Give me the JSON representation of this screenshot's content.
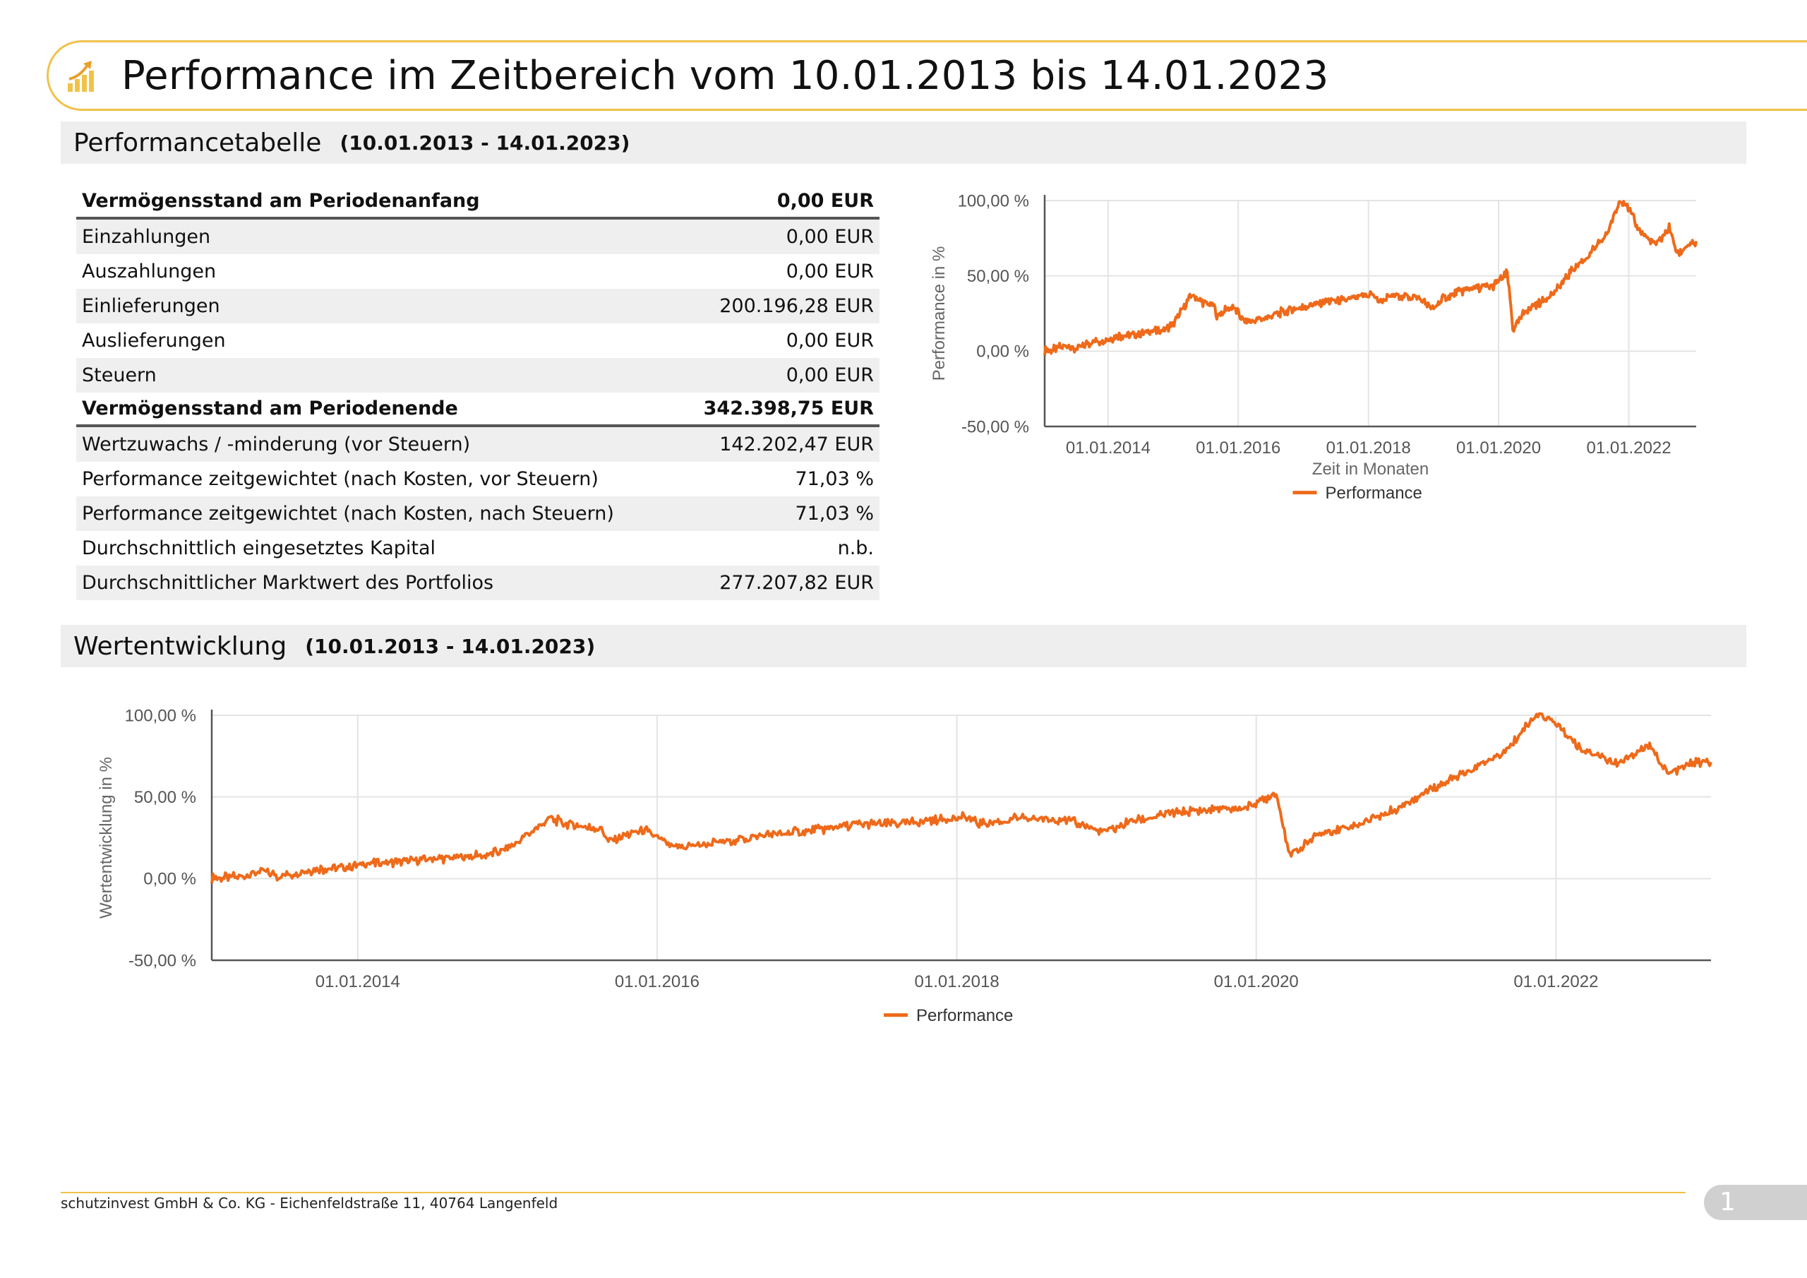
{
  "header": {
    "title": "Performance im Zeitbereich vom 10.01.2013 bis 14.01.2023",
    "icon": "chart-growth-icon",
    "accent_color": "#f1c24a"
  },
  "performance_section": {
    "title": "Performancetabelle",
    "range": "(10.01.2013 - 14.01.2023)",
    "rows": [
      {
        "label": "Vermögensstand am Periodenanfang",
        "value": "0,00 EUR",
        "bold": true
      },
      {
        "label": "Einzahlungen",
        "value": "0,00 EUR"
      },
      {
        "label": "Auszahlungen",
        "value": "0,00 EUR"
      },
      {
        "label": "Einlieferungen",
        "value": "200.196,28 EUR"
      },
      {
        "label": "Auslieferungen",
        "value": "0,00 EUR"
      },
      {
        "label": "Steuern",
        "value": "0,00 EUR"
      },
      {
        "label": "Vermögensstand am Periodenende",
        "value": "342.398,75 EUR",
        "bold": true
      },
      {
        "label": "Wertzuwachs / -minderung (vor Steuern)",
        "value": "142.202,47 EUR"
      },
      {
        "label": "Performance zeitgewichtet (nach Kosten, vor Steuern)",
        "value": "71,03 %"
      },
      {
        "label": "Performance zeitgewichtet (nach Kosten, nach Steuern)",
        "value": "71,03 %"
      },
      {
        "label": "Durchschnittlich eingesetztes Kapital",
        "value": "n.b."
      },
      {
        "label": "Durchschnittlicher Marktwert des Portfolios",
        "value": "277.207,82 EUR"
      }
    ]
  },
  "wertentwicklung_section": {
    "title": "Wertentwicklung",
    "range": "(10.01.2013 - 14.01.2023)"
  },
  "footer": {
    "text": "schutzinvest GmbH & Co. KG - Eichenfeldstraße 11, 40764 Langenfeld",
    "page": "1"
  },
  "chart_data": [
    {
      "type": "line",
      "xlabel": "Zeit in Monaten",
      "ylabel": "Performance in %",
      "legend": "bottom",
      "grid": true,
      "xlim": [
        "2013-01-10",
        "2023-01-14"
      ],
      "ylim": [
        -50,
        100
      ],
      "y_ticks": [
        "-50,00 %",
        "0,00 %",
        "50,00 %",
        "100,00 %"
      ],
      "x_ticks": [
        "01.01.2014",
        "01.01.2016",
        "01.01.2018",
        "01.01.2020",
        "01.01.2022"
      ],
      "series": [
        {
          "name": "Performance",
          "color": "#ee6a1a",
          "points": [
            [
              "2013-01-10",
              0
            ],
            [
              "2013-03-01",
              1
            ],
            [
              "2013-05-20",
              5
            ],
            [
              "2013-06-25",
              1
            ],
            [
              "2013-09-01",
              5
            ],
            [
              "2013-12-01",
              7
            ],
            [
              "2014-03-01",
              10
            ],
            [
              "2014-06-01",
              11
            ],
            [
              "2014-09-01",
              13
            ],
            [
              "2014-11-01",
              14
            ],
            [
              "2015-01-01",
              18
            ],
            [
              "2015-04-15",
              37
            ],
            [
              "2015-06-01",
              33
            ],
            [
              "2015-08-20",
              30
            ],
            [
              "2015-09-01",
              23
            ],
            [
              "2015-12-01",
              30
            ],
            [
              "2016-02-10",
              19
            ],
            [
              "2016-06-01",
              22
            ],
            [
              "2016-09-01",
              26
            ],
            [
              "2017-01-01",
              29
            ],
            [
              "2017-05-01",
              33
            ],
            [
              "2017-09-01",
              34
            ],
            [
              "2018-01-20",
              38
            ],
            [
              "2018-03-01",
              33
            ],
            [
              "2018-06-01",
              37
            ],
            [
              "2018-10-01",
              36
            ],
            [
              "2018-12-25",
              28
            ],
            [
              "2019-03-01",
              35
            ],
            [
              "2019-07-01",
              41
            ],
            [
              "2019-12-01",
              43
            ],
            [
              "2020-02-19",
              52
            ],
            [
              "2020-03-23",
              14
            ],
            [
              "2020-06-01",
              27
            ],
            [
              "2020-09-01",
              33
            ],
            [
              "2020-12-01",
              42
            ],
            [
              "2021-03-01",
              55
            ],
            [
              "2021-06-01",
              65
            ],
            [
              "2021-09-01",
              78
            ],
            [
              "2021-11-15",
              101
            ],
            [
              "2022-01-01",
              95
            ],
            [
              "2022-03-01",
              80
            ],
            [
              "2022-06-01",
              70
            ],
            [
              "2022-08-15",
              82
            ],
            [
              "2022-10-01",
              64
            ],
            [
              "2022-12-01",
              71
            ],
            [
              "2023-01-14",
              71
            ]
          ]
        }
      ]
    },
    {
      "type": "line",
      "xlabel": "",
      "ylabel": "Wertentwicklung in %",
      "legend": "bottom",
      "grid": true,
      "xlim": [
        "2013-01-10",
        "2023-01-14"
      ],
      "ylim": [
        -50,
        100
      ],
      "y_ticks": [
        "-50,00 %",
        "0,00 %",
        "50,00 %",
        "100,00 %"
      ],
      "x_ticks": [
        "01.01.2014",
        "01.01.2016",
        "01.01.2018",
        "01.01.2020",
        "01.01.2022"
      ],
      "series": [
        {
          "name": "Performance",
          "color": "#ee6a1a",
          "points": [
            [
              "2013-01-10",
              0
            ],
            [
              "2013-03-01",
              1
            ],
            [
              "2013-05-20",
              5
            ],
            [
              "2013-06-25",
              1
            ],
            [
              "2013-09-01",
              5
            ],
            [
              "2013-12-01",
              7
            ],
            [
              "2014-03-01",
              10
            ],
            [
              "2014-06-01",
              11
            ],
            [
              "2014-09-01",
              13
            ],
            [
              "2014-11-01",
              14
            ],
            [
              "2015-01-01",
              18
            ],
            [
              "2015-04-15",
              37
            ],
            [
              "2015-06-01",
              33
            ],
            [
              "2015-08-20",
              30
            ],
            [
              "2015-09-01",
              23
            ],
            [
              "2015-12-01",
              30
            ],
            [
              "2016-02-10",
              19
            ],
            [
              "2016-06-01",
              22
            ],
            [
              "2016-09-01",
              26
            ],
            [
              "2017-01-01",
              29
            ],
            [
              "2017-05-01",
              33
            ],
            [
              "2017-09-01",
              34
            ],
            [
              "2018-01-20",
              38
            ],
            [
              "2018-03-01",
              33
            ],
            [
              "2018-06-01",
              37
            ],
            [
              "2018-10-01",
              36
            ],
            [
              "2018-12-25",
              28
            ],
            [
              "2019-03-01",
              35
            ],
            [
              "2019-07-01",
              41
            ],
            [
              "2019-12-01",
              43
            ],
            [
              "2020-02-19",
              52
            ],
            [
              "2020-03-23",
              14
            ],
            [
              "2020-06-01",
              27
            ],
            [
              "2020-09-01",
              33
            ],
            [
              "2020-12-01",
              42
            ],
            [
              "2021-03-01",
              55
            ],
            [
              "2021-06-01",
              65
            ],
            [
              "2021-09-01",
              78
            ],
            [
              "2021-11-15",
              101
            ],
            [
              "2022-01-01",
              95
            ],
            [
              "2022-03-01",
              80
            ],
            [
              "2022-06-01",
              70
            ],
            [
              "2022-08-15",
              82
            ],
            [
              "2022-10-01",
              64
            ],
            [
              "2022-12-01",
              71
            ],
            [
              "2023-01-14",
              71
            ]
          ]
        }
      ]
    }
  ]
}
